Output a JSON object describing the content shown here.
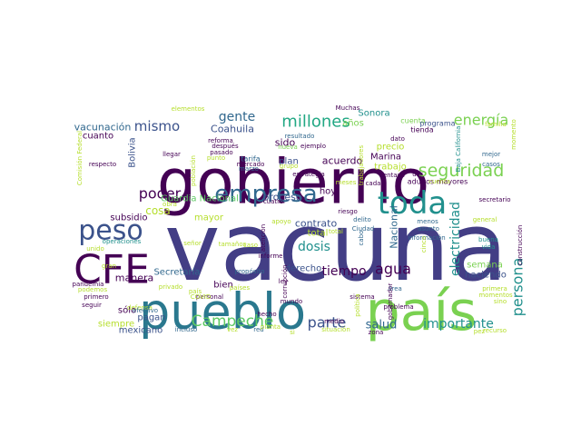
{
  "palette": {
    "dark_purple": "#440154",
    "indigo": "#3b528b",
    "blue": "#31688e",
    "teal": "#21908d",
    "green": "#35b779",
    "lime": "#7ad151",
    "yellow_green": "#b5de2b",
    "yellow": "#fde725"
  },
  "words": [
    {
      "text": "vacuna",
      "color": "#433e85"
    },
    {
      "text": "gobierno",
      "color": "#440154"
    },
    {
      "text": "país",
      "color": "#7ad151"
    },
    {
      "text": "pueblo",
      "color": "#2a788e"
    },
    {
      "text": "CFE",
      "color": "#440154"
    },
    {
      "text": "toda",
      "color": "#21908d"
    },
    {
      "text": "peso",
      "color": "#3b528b"
    },
    {
      "text": "empresa",
      "color": "#31688e"
    },
    {
      "text": "seguridad",
      "color": "#7ad151"
    },
    {
      "text": "Campeche",
      "color": "#5ec962"
    },
    {
      "text": "millones",
      "color": "#22a884"
    },
    {
      "text": "energía",
      "color": "#7ad151"
    },
    {
      "text": "poder",
      "color": "#440154"
    },
    {
      "text": "mismo",
      "color": "#3b528b"
    },
    {
      "text": "gente",
      "color": "#31688e"
    },
    {
      "text": "parte",
      "color": "#3b528b"
    },
    {
      "text": "persona",
      "color": "#21908d"
    },
    {
      "text": "electricidad",
      "color": "#21908d"
    },
    {
      "text": "dosis",
      "color": "#21908d"
    },
    {
      "text": "agua",
      "color": "#440154"
    },
    {
      "text": "tiempo",
      "color": "#440154"
    },
    {
      "text": "importante",
      "color": "#21908d"
    },
    {
      "text": "salud",
      "color": "#31688e"
    },
    {
      "text": "cosa",
      "color": "#b5de2b"
    },
    {
      "text": "Coahuila",
      "color": "#3b528b"
    },
    {
      "text": "sido",
      "color": "#440154"
    },
    {
      "text": "años",
      "color": "#7ad151"
    },
    {
      "text": "Sonora",
      "color": "#21908d"
    },
    {
      "text": "vacunación",
      "color": "#31688e"
    },
    {
      "text": "cuanto",
      "color": "#440154"
    },
    {
      "text": "acuerdo",
      "color": "#440154"
    },
    {
      "text": "proceso",
      "color": "#3b528b"
    },
    {
      "text": "hoy",
      "color": "#440154"
    },
    {
      "text": "Guardia Nacional",
      "color": "#5ec962"
    },
    {
      "text": "subsidio",
      "color": "#440154"
    },
    {
      "text": "mayor",
      "color": "#b5de2b"
    },
    {
      "text": "contrato",
      "color": "#3b528b"
    },
    {
      "text": "total",
      "color": "#b5de2b"
    },
    {
      "text": "derecho",
      "color": "#3b528b"
    },
    {
      "text": "Secretaría",
      "color": "#31688e"
    },
    {
      "text": "Nacional",
      "color": "#31688e"
    },
    {
      "text": "trabajo",
      "color": "#b5de2b"
    },
    {
      "text": "precio",
      "color": "#b5de2b"
    },
    {
      "text": "Marina",
      "color": "#440154"
    },
    {
      "text": "semana",
      "color": "#7ad151"
    },
    {
      "text": "haciendo",
      "color": "#3b528b"
    },
    {
      "text": "manera",
      "color": "#440154"
    },
    {
      "text": "bien",
      "color": "#440154"
    },
    {
      "text": "pagan",
      "color": "#3b528b"
    },
    {
      "text": "sólo",
      "color": "#440154"
    },
    {
      "text": "siempre",
      "color": "#b5de2b"
    },
    {
      "text": "mexicano",
      "color": "#3b528b"
    },
    {
      "text": "Bolivia",
      "color": "#3b528b"
    },
    {
      "text": "plan",
      "color": "#3b528b"
    },
    {
      "text": "cuenta",
      "color": "#7ad151"
    },
    {
      "text": "programa",
      "color": "#3b528b"
    },
    {
      "text": "tienda",
      "color": "#440154"
    },
    {
      "text": "adultos mayores",
      "color": "#440154"
    },
    {
      "text": "reforma",
      "color": "#440154"
    },
    {
      "text": "después",
      "color": "#440154"
    },
    {
      "text": "pasado",
      "color": "#440154"
    },
    {
      "text": "tarifa",
      "color": "#31688e"
    },
    {
      "text": "mercado",
      "color": "#440154"
    },
    {
      "text": "marzo",
      "color": "#31688e"
    },
    {
      "text": "nueva",
      "color": "#7ad151"
    },
    {
      "text": "grupo",
      "color": "#b5de2b"
    },
    {
      "text": "punto",
      "color": "#b5de2b"
    },
    {
      "text": "llegar",
      "color": "#440154"
    },
    {
      "text": "estrategia",
      "color": "#440154"
    },
    {
      "text": "meses",
      "color": "#b5de2b"
    },
    {
      "text": "riesgo",
      "color": "#440154"
    },
    {
      "text": "cada",
      "color": "#440154"
    },
    {
      "text": "dar",
      "color": "#440154"
    },
    {
      "text": "centavo",
      "color": "#440154"
    },
    {
      "text": "mejor",
      "color": "#31688e"
    },
    {
      "text": "casos",
      "color": "#31688e"
    },
    {
      "text": "secretario",
      "color": "#440154"
    },
    {
      "text": "general",
      "color": "#b5de2b"
    },
    {
      "text": "buena",
      "color": "#21908d"
    },
    {
      "text": "vida",
      "color": "#21908d"
    },
    {
      "text": "construcción",
      "color": "#440154"
    },
    {
      "text": "primera",
      "color": "#b5de2b"
    },
    {
      "text": "sino",
      "color": "#b5de2b"
    },
    {
      "text": "recurso",
      "color": "#b5de2b"
    },
    {
      "text": "delito",
      "color": "#31688e"
    },
    {
      "text": "asunto",
      "color": "#31688e"
    },
    {
      "text": "menos",
      "color": "#31688e"
    },
    {
      "text": "información",
      "color": "#31688e"
    },
    {
      "text": "Ciudad",
      "color": "#31688e"
    },
    {
      "text": "cabo",
      "color": "#31688e"
    },
    {
      "text": "cinco",
      "color": "#b5de2b"
    },
    {
      "text": "área",
      "color": "#31688e"
    },
    {
      "text": "gobernador",
      "color": "#440154"
    },
    {
      "text": "problema",
      "color": "#440154"
    },
    {
      "text": "sistema",
      "color": "#440154"
    },
    {
      "text": "política",
      "color": "#b5de2b"
    },
    {
      "text": "situación",
      "color": "#b5de2b"
    },
    {
      "text": "medio",
      "color": "#440154"
    },
    {
      "text": "mundo",
      "color": "#440154"
    },
    {
      "text": "ley",
      "color": "#440154"
    },
    {
      "text": "informe",
      "color": "#440154"
    },
    {
      "text": "propósito",
      "color": "#31688e"
    },
    {
      "text": "corrupción",
      "color": "#440154"
    },
    {
      "text": "atención",
      "color": "#440154"
    },
    {
      "text": "apoyo",
      "color": "#b5de2b"
    },
    {
      "text": "cuatro",
      "color": "#440154"
    },
    {
      "text": "privado",
      "color": "#b5de2b"
    },
    {
      "text": "país",
      "color": "#b5de2b",
      "minor": true
    },
    {
      "text": "hecho",
      "color": "#440154"
    },
    {
      "text": "incluso",
      "color": "#31688e"
    },
    {
      "text": "vez",
      "color": "#b5de2b"
    },
    {
      "text": "red",
      "color": "#31688e"
    },
    {
      "text": "países",
      "color": "#b5de2b"
    },
    {
      "text": "personal",
      "color": "#440154"
    },
    {
      "text": "defensa",
      "color": "#b5de2b"
    },
    {
      "text": "efectivo",
      "color": "#31688e"
    },
    {
      "text": "pandemia",
      "color": "#440154"
    },
    {
      "text": "podemos",
      "color": "#b5de2b"
    },
    {
      "text": "primero",
      "color": "#440154"
    },
    {
      "text": "seguir",
      "color": "#440154"
    },
    {
      "text": "respecto",
      "color": "#440154"
    },
    {
      "text": "Comisión Federal",
      "color": "#b5de2b"
    },
    {
      "text": "población",
      "color": "#b5de2b"
    },
    {
      "text": "elementos",
      "color": "#b5de2b"
    },
    {
      "text": "Muchas",
      "color": "#440154"
    },
    {
      "text": "obra",
      "color": "#b5de2b"
    },
    {
      "text": "unido",
      "color": "#b5de2b"
    },
    {
      "text": "operaciones",
      "color": "#21908d"
    },
    {
      "text": "trabajadores",
      "color": "#b5de2b"
    },
    {
      "text": "Baja California",
      "color": "#21908d"
    },
    {
      "text": "momento",
      "color": "#b5de2b"
    },
    {
      "text": "familia",
      "color": "#b5de2b"
    },
    {
      "text": "dato",
      "color": "#440154"
    },
    {
      "text": "ejemplo",
      "color": "#440154"
    },
    {
      "text": "resultado",
      "color": "#31688e"
    },
    {
      "text": "COVID",
      "color": "#b5de2b"
    },
    {
      "text": "zona",
      "color": "#440154"
    },
    {
      "text": "gran",
      "color": "#b5de2b"
    },
    {
      "text": "señor",
      "color": "#b5de2b"
    },
    {
      "text": "tamaños",
      "color": "#b5de2b"
    },
    {
      "text": "caso",
      "color": "#b5de2b"
    },
    {
      "text": "planta",
      "color": "#b5de2b"
    },
    {
      "text": "si",
      "color": "#b5de2b"
    },
    {
      "text": "pez",
      "color": "#b5de2b"
    },
    {
      "text": "momentos",
      "color": "#b5de2b"
    },
    {
      "text": "cuenta",
      "color": "#b5de2b",
      "minor": true
    },
    {
      "text": "total",
      "color": "#b5de2b",
      "minor": true
    }
  ]
}
